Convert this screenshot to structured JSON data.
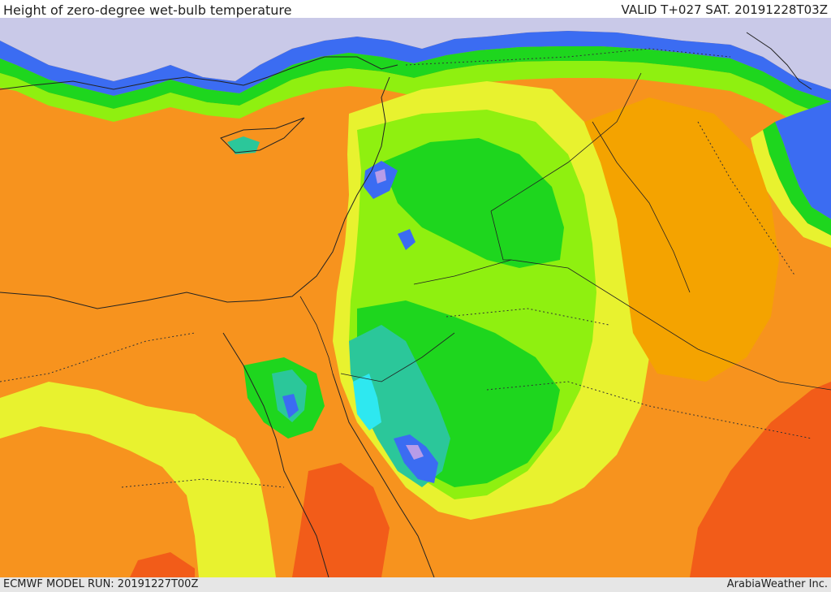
{
  "header": {
    "title": "Height of zero-degree wet-bulb temperature",
    "valid": "VALID T+027 SAT. 20191228T03Z"
  },
  "footer": {
    "model_run": "ECMWF MODEL RUN: 20191227T00Z",
    "credit": "ArabiaWeather Inc."
  },
  "colors": {
    "sea": "#c9c9e8",
    "orange": "#f7931e",
    "deep_orange": "#f4a300",
    "red_orange": "#f25c19",
    "yellow": "#e8f22f",
    "lime": "#8ff010",
    "green": "#1ed61e",
    "teal": "#2bc79a",
    "cyan": "#2ee8f0",
    "blue": "#3b6cf2",
    "violet": "#b79ce8"
  }
}
